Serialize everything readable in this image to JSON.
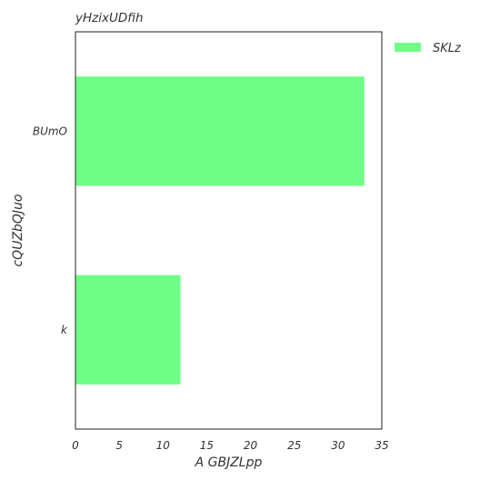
{
  "chart_data": {
    "type": "bar",
    "orientation": "horizontal",
    "title": "yHzixUDfih",
    "xlabel": "A GBJZLpp",
    "ylabel": "cQUZbQJuo",
    "categories": [
      "BUmO",
      "k"
    ],
    "series": [
      {
        "name": "SKLz",
        "values": [
          33,
          12
        ],
        "color": "#6fff87"
      }
    ],
    "xlim": [
      0,
      35
    ],
    "xticks": [
      0,
      5,
      10,
      15,
      20,
      25,
      30,
      35
    ],
    "grid": false,
    "legend_position": "outside-top-right"
  }
}
